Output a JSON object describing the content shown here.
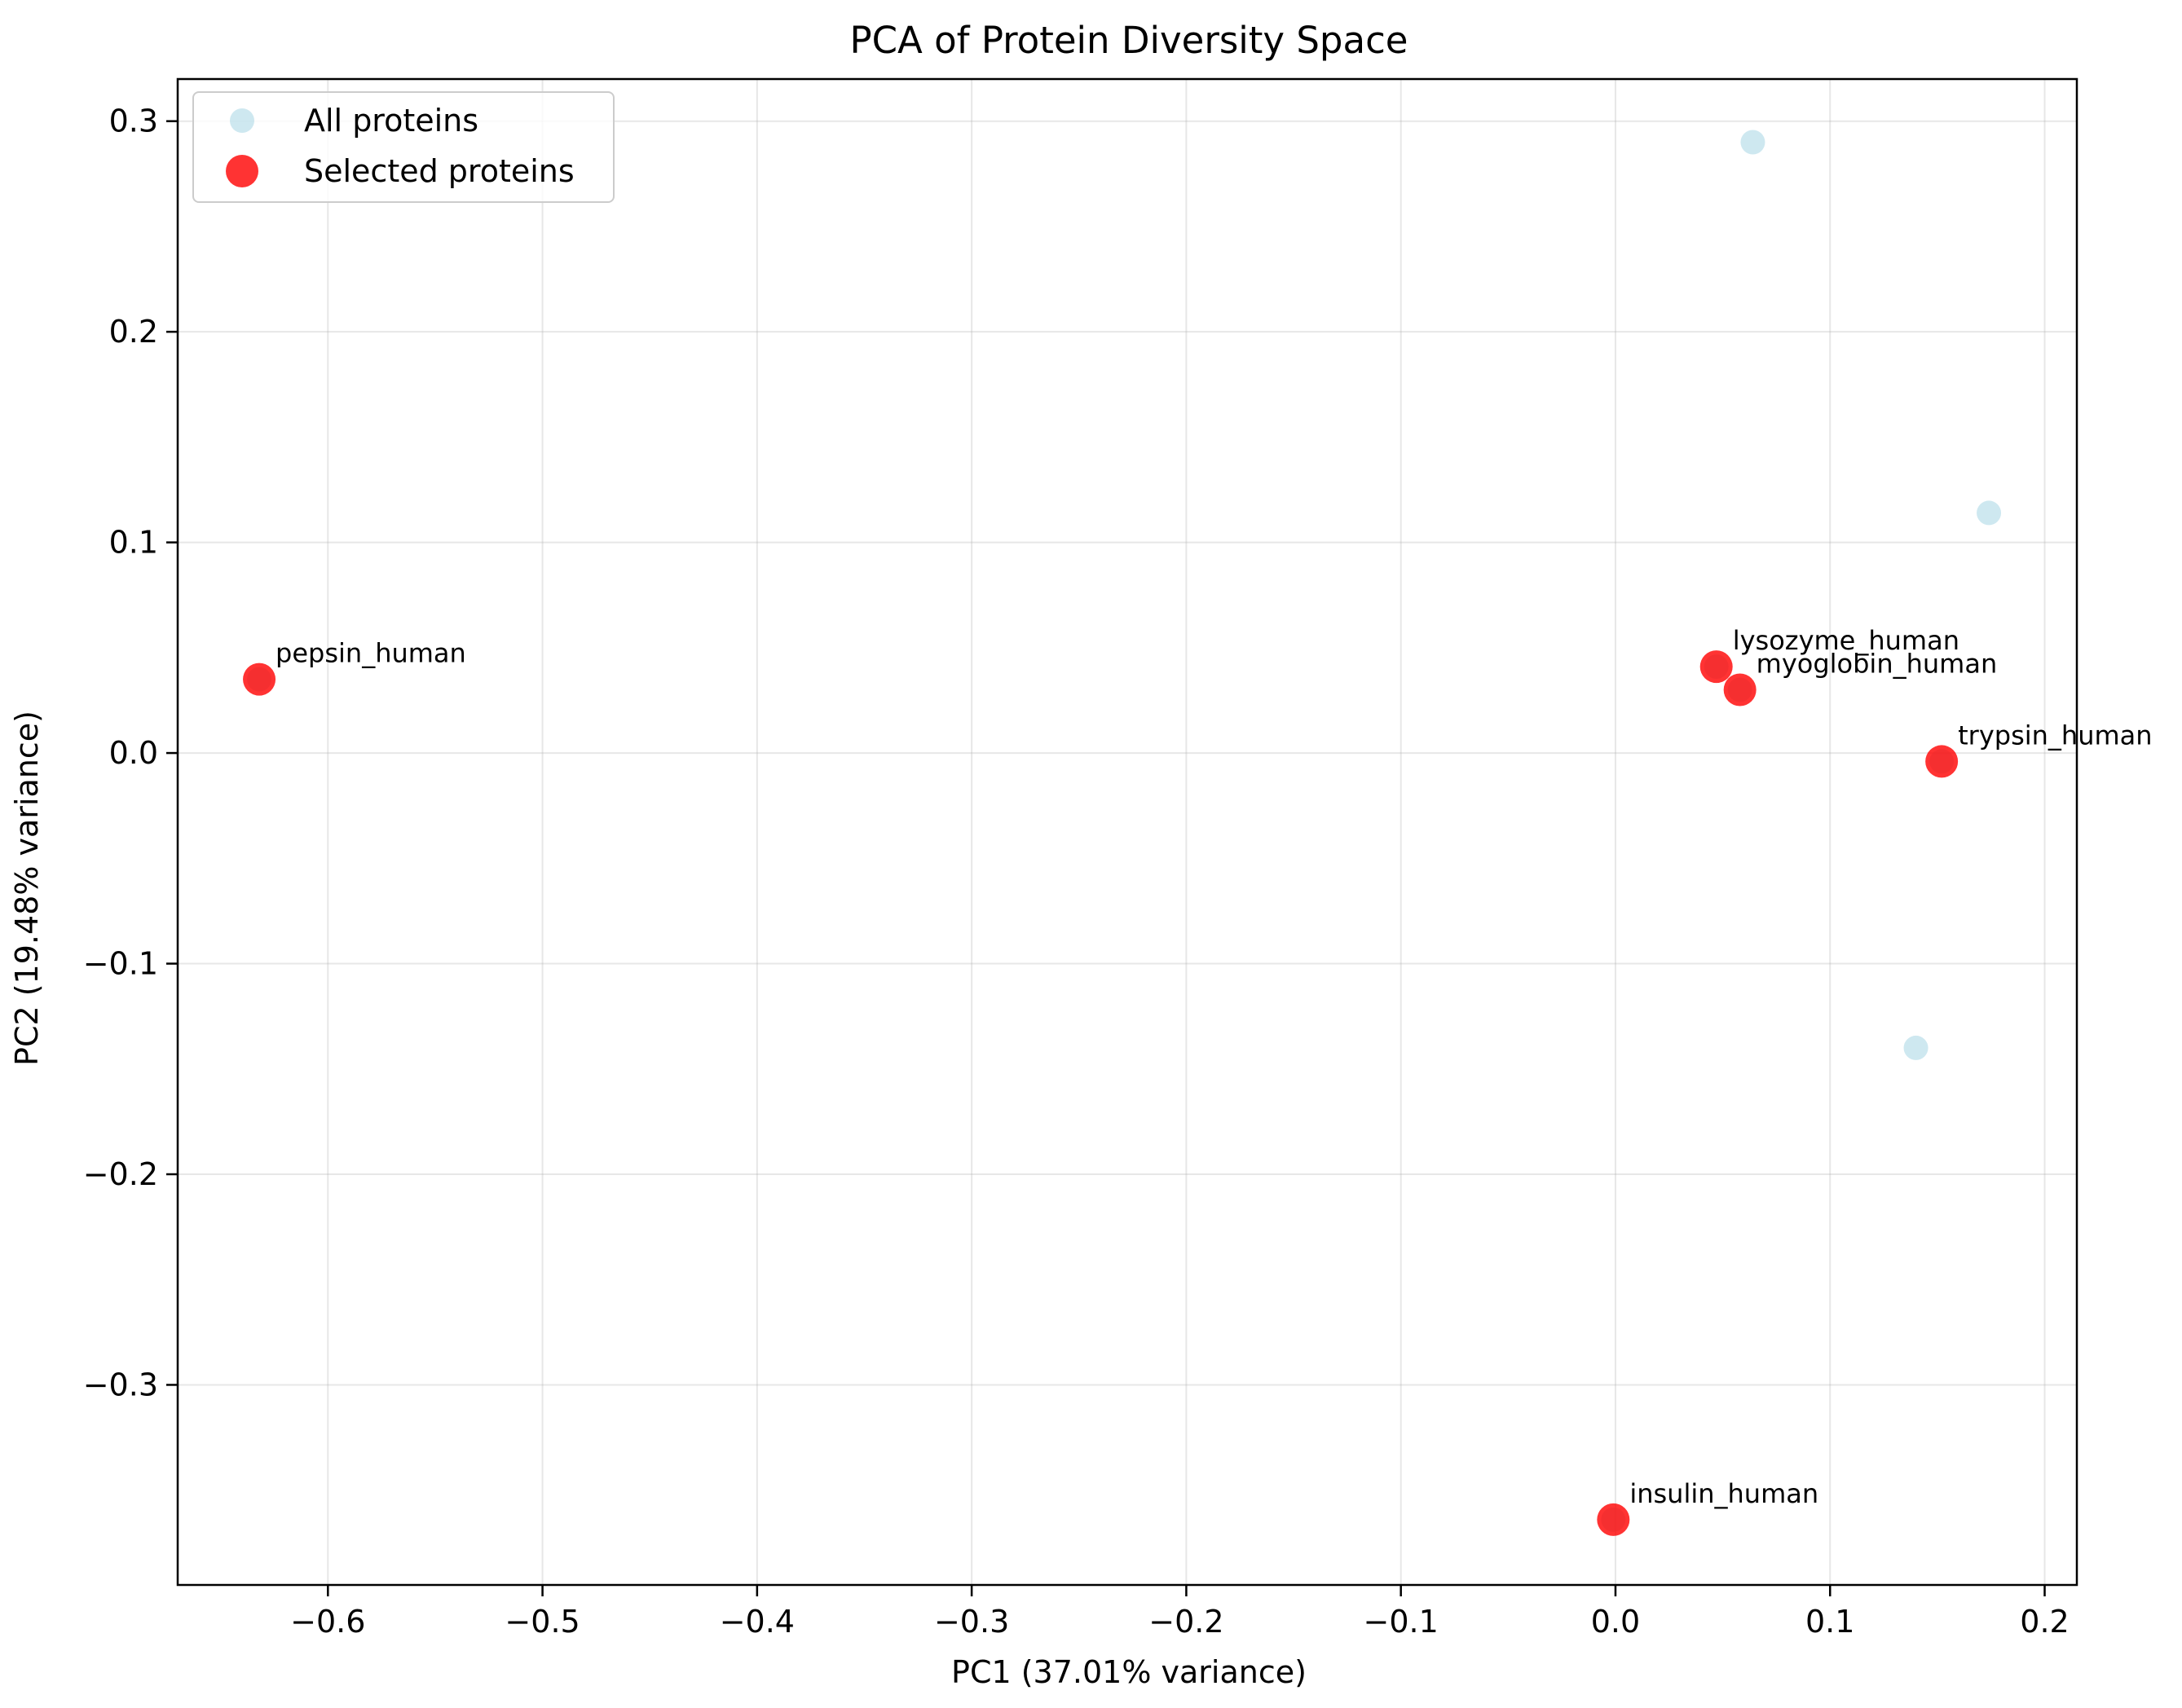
{
  "chart_data": {
    "type": "scatter",
    "title": "PCA of Protein Diversity Space",
    "xlabel": "PC1 (37.01% variance)",
    "ylabel": "PC2 (19.48% variance)",
    "xlim": [
      -0.67,
      0.215
    ],
    "ylim": [
      -0.395,
      0.32
    ],
    "xticks": [
      -0.6,
      -0.5,
      -0.4,
      -0.3,
      -0.2,
      -0.1,
      0.0,
      0.1,
      0.2
    ],
    "xtick_labels": [
      "−0.6",
      "−0.5",
      "−0.4",
      "−0.3",
      "−0.2",
      "−0.1",
      "0.0",
      "0.1",
      "0.2"
    ],
    "yticks": [
      -0.3,
      -0.2,
      -0.1,
      0.0,
      0.1,
      0.2,
      0.3
    ],
    "ytick_labels": [
      "−0.3",
      "−0.2",
      "−0.1",
      "0.0",
      "0.1",
      "0.2",
      "0.3"
    ],
    "grid": true,
    "legend_position": "top-left",
    "series": [
      {
        "name": "All proteins",
        "color": "#add8e6",
        "alpha": 0.6,
        "points": [
          {
            "x": 0.064,
            "y": 0.29
          },
          {
            "x": 0.174,
            "y": 0.114
          },
          {
            "x": 0.14,
            "y": -0.14
          },
          {
            "x": -0.632,
            "y": 0.035
          },
          {
            "x": 0.047,
            "y": 0.041
          },
          {
            "x": 0.058,
            "y": 0.03
          },
          {
            "x": 0.152,
            "y": -0.004
          },
          {
            "x": -0.001,
            "y": -0.364
          }
        ]
      },
      {
        "name": "Selected proteins",
        "color": "#ff0000",
        "alpha": 0.8,
        "points": [
          {
            "x": -0.632,
            "y": 0.035,
            "label": "pepsin_human"
          },
          {
            "x": 0.047,
            "y": 0.041,
            "label": "lysozyme_human"
          },
          {
            "x": 0.058,
            "y": 0.03,
            "label": "myoglobin_human"
          },
          {
            "x": 0.152,
            "y": -0.004,
            "label": "trypsin_human"
          },
          {
            "x": -0.001,
            "y": -0.364,
            "label": "insulin_human"
          }
        ]
      }
    ]
  }
}
